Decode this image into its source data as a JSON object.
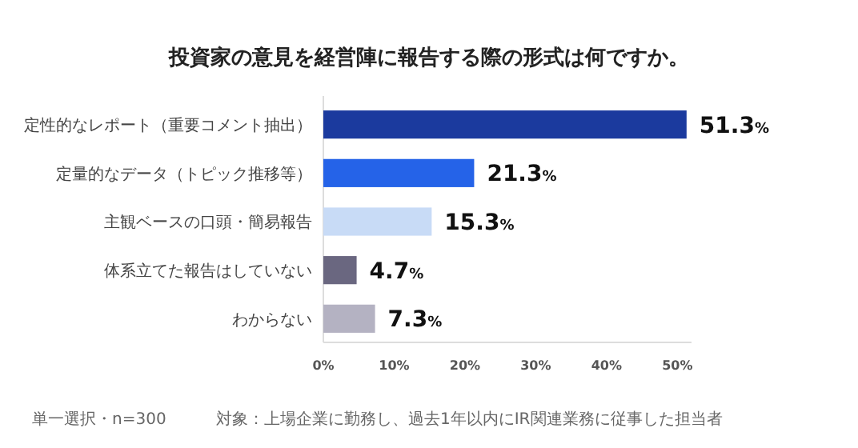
{
  "chart_data": {
    "type": "bar",
    "orientation": "horizontal",
    "title": "投資家の意見を経営陣に報告する際の形式は何ですか。",
    "categories": [
      "定性的なレポート（重要コメント抽出）",
      "定量的なデータ（トピック推移等）",
      "主観ベースの口頭・簡易報告",
      "体系立てた報告はしていない",
      "わからない"
    ],
    "values": [
      51.3,
      21.3,
      15.3,
      4.7,
      7.3
    ],
    "colors": [
      "#1b3a9e",
      "#2563e8",
      "#c8dbf6",
      "#6a6780",
      "#b4b2c2"
    ],
    "value_labels": [
      "51.3%",
      "21.3%",
      "15.3%",
      "4.7%",
      "7.3%"
    ],
    "xlim": [
      0,
      52
    ],
    "xticks": [
      {
        "value": 0,
        "label": "0%"
      },
      {
        "value": 10,
        "label": "10%"
      },
      {
        "value": 20,
        "label": "20%"
      },
      {
        "value": 30,
        "label": "30%"
      },
      {
        "value": 40,
        "label": "40%"
      },
      {
        "value": 50,
        "label": "50%"
      }
    ],
    "grid": false,
    "annotations": [
      "単一選択・n=300",
      "対象：上場企業に勤務し、過去1年以内にIR関連業務に従事した担当者"
    ]
  }
}
